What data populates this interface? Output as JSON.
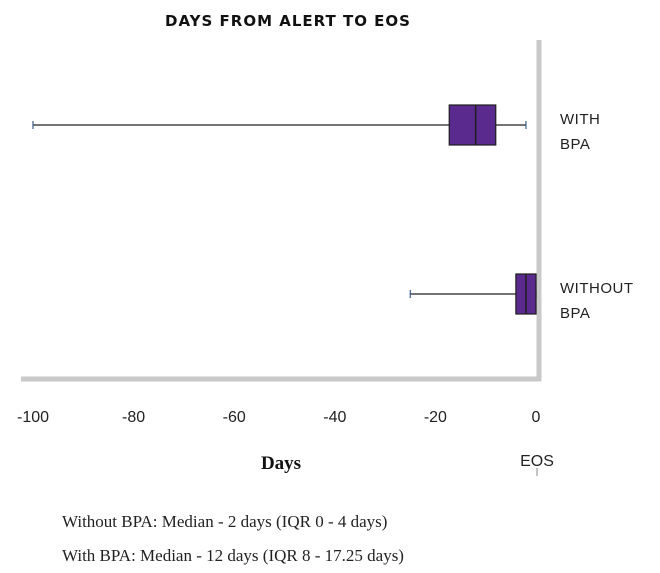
{
  "chart_data": {
    "type": "boxplot",
    "title": "DAYS FROM ALERT TO EOS",
    "xlabel": "Days",
    "ylabel": "",
    "xlim": [
      -100,
      0
    ],
    "xticks": [
      "-100",
      "-80",
      "-60",
      "-40",
      "-20",
      "0"
    ],
    "xtick_values": [
      -100,
      -80,
      -60,
      -40,
      -20,
      0
    ],
    "reference_label": "EOS",
    "grid": false,
    "box_color": "#5b2a8e",
    "whisker_color": "#222222",
    "cap_color": "#3b5b8a",
    "series": [
      {
        "label_line1": "WITH",
        "label_line2": "BPA",
        "min": -100,
        "q1": -17.25,
        "median": -12,
        "q3": -8,
        "max": -2
      },
      {
        "label_line1": "WITHOUT",
        "label_line2": "BPA",
        "min": -25,
        "q1": -4,
        "median": -2,
        "q3": 0,
        "max": 0
      }
    ]
  },
  "notes": [
    "Without BPA: Median - 2 days (IQR 0 - 4 days)",
    "With BPA: Median - 12 days (IQR 8 - 17.25 days)"
  ]
}
